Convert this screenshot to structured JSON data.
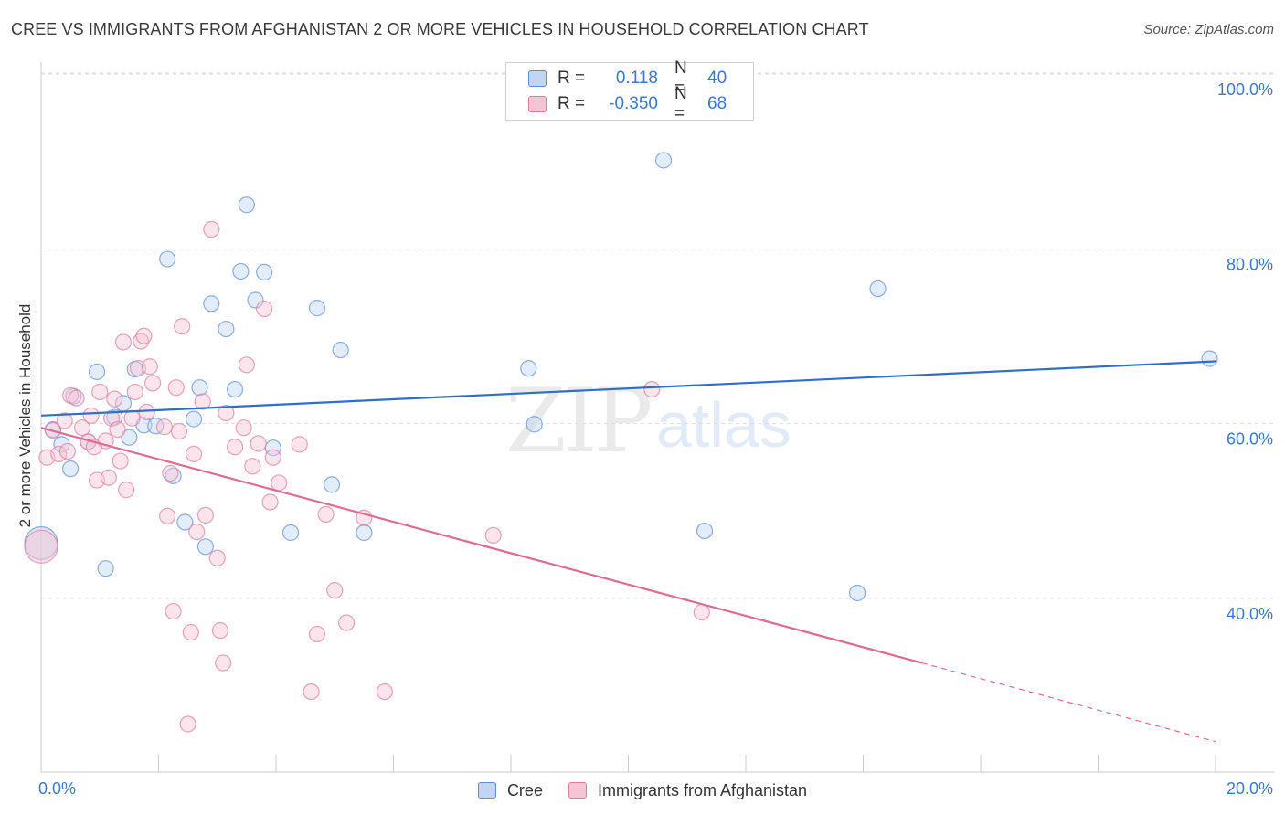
{
  "header": {
    "title": "CREE VS IMMIGRANTS FROM AFGHANISTAN 2 OR MORE VEHICLES IN HOUSEHOLD CORRELATION CHART",
    "source": "Source: ZipAtlas.com"
  },
  "watermark": {
    "zip": "ZIP",
    "atlas": "atlas"
  },
  "legend_top": {
    "rows": [
      {
        "r_label": "R =",
        "r_value": "0.118",
        "n_label": "N =",
        "n_value": "40",
        "color": "#5b8fd6",
        "fill": "#c0d6f2"
      },
      {
        "r_label": "R =",
        "r_value": "-0.350",
        "n_label": "N =",
        "n_value": "68",
        "color": "#e07a9d",
        "fill": "#f6c5d4"
      }
    ]
  },
  "legend_bottom": [
    {
      "label": "Cree",
      "color": "#5b8fd6",
      "fill": "#c0d6f2"
    },
    {
      "label": "Immigrants from Afghanistan",
      "color": "#e07a9d",
      "fill": "#f6c5d4"
    }
  ],
  "chart_data": {
    "type": "scatter",
    "title": "CREE VS IMMIGRANTS FROM AFGHANISTAN 2 OR MORE VEHICLES IN HOUSEHOLD CORRELATION CHART",
    "xlabel": "",
    "ylabel": "2 or more Vehicles in Household",
    "xlim": [
      0,
      20
    ],
    "ylim": [
      18,
      102
    ],
    "x_tick_labels": [
      "0.0%",
      "20.0%"
    ],
    "y_ticks": [
      40,
      60,
      80,
      100
    ],
    "y_tick_labels": [
      "40.0%",
      "60.0%",
      "80.0%",
      "100.0%"
    ],
    "grid": true,
    "series": [
      {
        "name": "Cree",
        "color": "#5b8fd6",
        "fill": "#c0d6f2",
        "trend": {
          "x0": 0.0,
          "y0": 62.6,
          "x1": 20.0,
          "y1": 68.8
        },
        "points": [
          [
            0.0,
            48.0
          ],
          [
            0.2,
            61.0
          ],
          [
            0.35,
            59.3
          ],
          [
            0.5,
            56.5
          ],
          [
            0.55,
            64.8
          ],
          [
            0.8,
            59.6
          ],
          [
            0.95,
            67.6
          ],
          [
            1.1,
            45.1
          ],
          [
            1.25,
            62.4
          ],
          [
            1.4,
            64.0
          ],
          [
            1.5,
            60.1
          ],
          [
            1.6,
            67.9
          ],
          [
            1.75,
            61.5
          ],
          [
            1.95,
            61.4
          ],
          [
            2.15,
            80.5
          ],
          [
            2.25,
            55.7
          ],
          [
            2.45,
            50.4
          ],
          [
            2.6,
            62.2
          ],
          [
            2.7,
            65.8
          ],
          [
            2.8,
            47.6
          ],
          [
            2.9,
            75.4
          ],
          [
            3.15,
            72.5
          ],
          [
            3.3,
            65.6
          ],
          [
            3.4,
            79.1
          ],
          [
            3.5,
            86.7
          ],
          [
            3.65,
            75.8
          ],
          [
            3.8,
            79.0
          ],
          [
            3.95,
            58.9
          ],
          [
            4.25,
            49.2
          ],
          [
            4.7,
            74.9
          ],
          [
            4.95,
            54.7
          ],
          [
            5.1,
            70.1
          ],
          [
            5.5,
            49.2
          ],
          [
            8.3,
            68.0
          ],
          [
            8.4,
            61.6
          ],
          [
            10.6,
            91.8
          ],
          [
            11.3,
            49.4
          ],
          [
            13.9,
            42.3
          ],
          [
            14.25,
            77.1
          ],
          [
            19.9,
            69.1
          ]
        ]
      },
      {
        "name": "Immigrants from Afghanistan",
        "color": "#e07a9d",
        "fill": "#f6c5d4",
        "trend": {
          "x0": 0.0,
          "y0": 61.2,
          "x1": 15.0,
          "y1": 34.3
        },
        "trend_dashed": {
          "x0": 15.0,
          "y0": 34.3,
          "x1": 20.0,
          "y1": 25.3
        },
        "points": [
          [
            0.0,
            47.6
          ],
          [
            0.1,
            57.8
          ],
          [
            0.2,
            60.9
          ],
          [
            0.3,
            58.2
          ],
          [
            0.4,
            62.0
          ],
          [
            0.45,
            58.5
          ],
          [
            0.5,
            64.9
          ],
          [
            0.6,
            64.6
          ],
          [
            0.7,
            61.2
          ],
          [
            0.8,
            59.6
          ],
          [
            0.9,
            59.0
          ],
          [
            0.95,
            55.2
          ],
          [
            1.0,
            65.3
          ],
          [
            1.1,
            59.7
          ],
          [
            1.15,
            55.5
          ],
          [
            1.2,
            62.3
          ],
          [
            1.3,
            61.0
          ],
          [
            1.35,
            57.4
          ],
          [
            1.4,
            71.0
          ],
          [
            1.45,
            54.1
          ],
          [
            1.55,
            62.3
          ],
          [
            1.6,
            65.3
          ],
          [
            1.65,
            68.0
          ],
          [
            1.7,
            71.1
          ],
          [
            1.75,
            71.7
          ],
          [
            1.8,
            63.0
          ],
          [
            1.85,
            68.2
          ],
          [
            1.9,
            66.3
          ],
          [
            2.1,
            61.3
          ],
          [
            2.15,
            51.1
          ],
          [
            2.2,
            56.0
          ],
          [
            2.25,
            40.2
          ],
          [
            2.3,
            65.8
          ],
          [
            2.4,
            72.8
          ],
          [
            2.5,
            27.3
          ],
          [
            2.55,
            37.8
          ],
          [
            2.6,
            58.2
          ],
          [
            2.65,
            49.3
          ],
          [
            2.75,
            64.2
          ],
          [
            2.8,
            51.2
          ],
          [
            2.9,
            83.9
          ],
          [
            3.0,
            46.3
          ],
          [
            3.05,
            38.0
          ],
          [
            3.1,
            34.3
          ],
          [
            3.15,
            62.9
          ],
          [
            3.3,
            59.0
          ],
          [
            3.45,
            61.2
          ],
          [
            3.5,
            68.4
          ],
          [
            3.6,
            56.8
          ],
          [
            3.7,
            59.4
          ],
          [
            3.8,
            74.8
          ],
          [
            3.9,
            52.7
          ],
          [
            3.95,
            57.8
          ],
          [
            4.05,
            54.9
          ],
          [
            4.4,
            59.3
          ],
          [
            4.6,
            31.0
          ],
          [
            4.7,
            37.6
          ],
          [
            4.85,
            51.3
          ],
          [
            5.0,
            42.6
          ],
          [
            5.2,
            38.9
          ],
          [
            5.5,
            50.9
          ],
          [
            5.85,
            31.0
          ],
          [
            7.7,
            48.9
          ],
          [
            10.4,
            65.6
          ],
          [
            11.25,
            40.1
          ],
          [
            1.25,
            64.5
          ],
          [
            0.85,
            62.6
          ],
          [
            2.35,
            60.8
          ]
        ]
      }
    ]
  }
}
